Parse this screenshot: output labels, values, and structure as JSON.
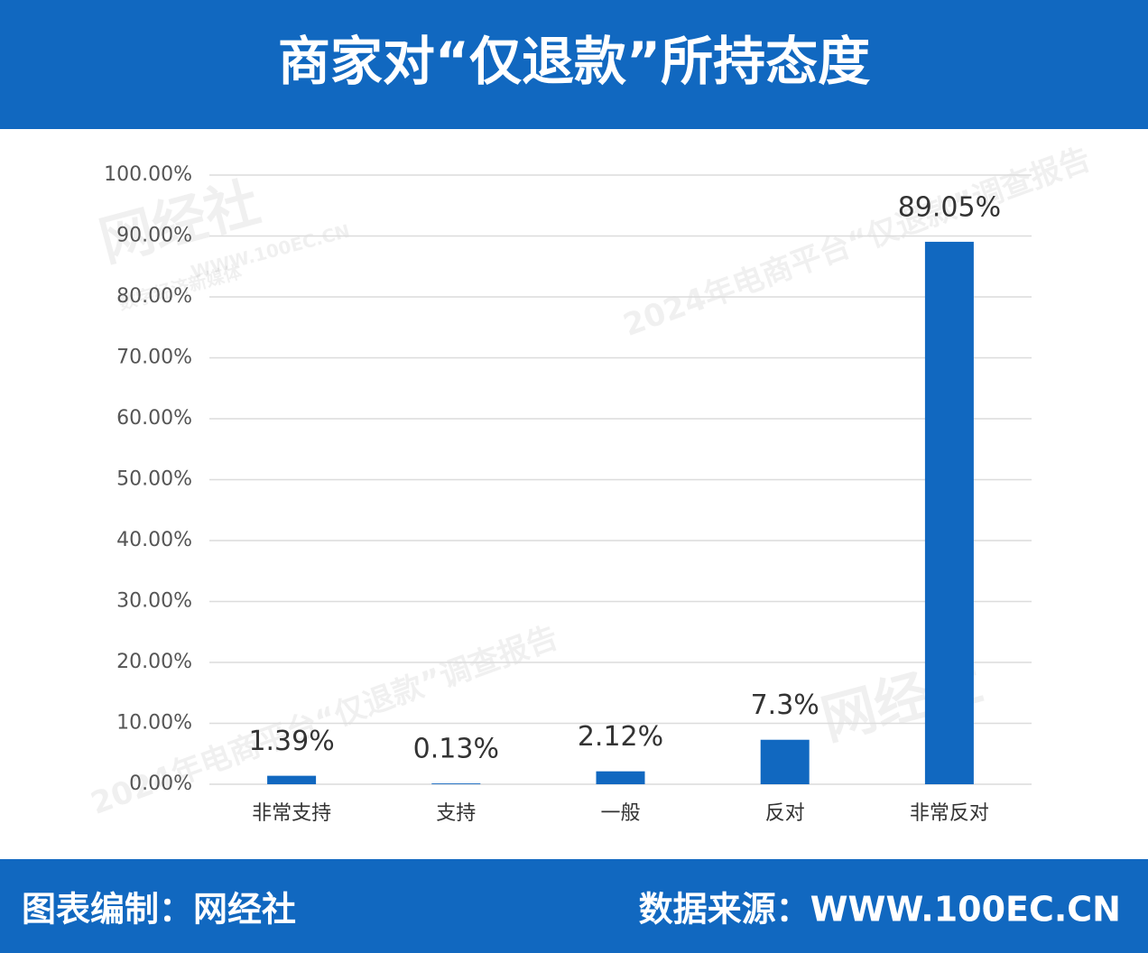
{
  "chart_data": {
    "type": "bar",
    "title": "商家对“仅退款”所持态度",
    "credit": "图表编制：网经社",
    "source": "数据来源：WWW.100EC.CN",
    "watermarks": [
      "网经社",
      "WWW.100EC.CN",
      "数字经济新媒体",
      "2024年电商平台“仅退款”调查报告"
    ],
    "categories": [
      "非常支持",
      "支持",
      "一般",
      "反对",
      "非常反对"
    ],
    "values": [
      1.39,
      0.13,
      2.12,
      7.3,
      89.05
    ],
    "value_labels": [
      "1.39%",
      "0.13%",
      "2.12%",
      "7.3%",
      "89.05%"
    ],
    "color": "#1168c0",
    "ylim": [
      0,
      100
    ],
    "yticks": [
      {
        "value": 0,
        "label": "0.00%"
      },
      {
        "value": 10,
        "label": "10.00%"
      },
      {
        "value": 20,
        "label": "20.00%"
      },
      {
        "value": 30,
        "label": "30.00%"
      },
      {
        "value": 40,
        "label": "40.00%"
      },
      {
        "value": 50,
        "label": "50.00%"
      },
      {
        "value": 60,
        "label": "60.00%"
      },
      {
        "value": 70,
        "label": "70.00%"
      },
      {
        "value": 80,
        "label": "80.00%"
      },
      {
        "value": 90,
        "label": "90.00%"
      },
      {
        "value": 100,
        "label": "100.00%"
      }
    ],
    "grid": true
  }
}
